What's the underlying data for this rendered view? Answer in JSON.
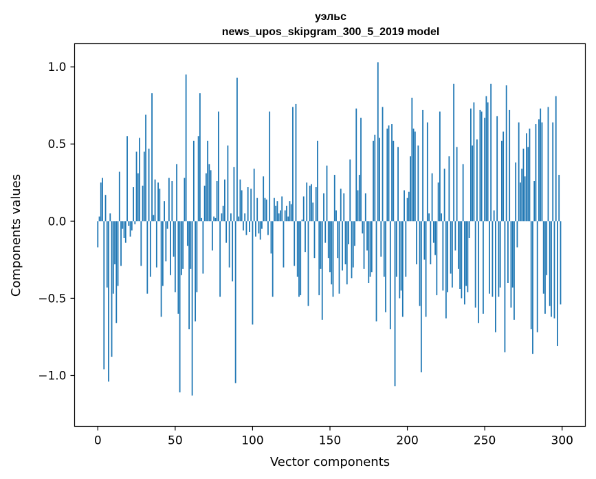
{
  "chart_data": {
    "type": "bar",
    "title": "уэльс",
    "subtitle": "news_upos_skipgram_300_5_2019 model",
    "xlabel": "Vector components",
    "ylabel": "Components values",
    "xlim": [
      -15,
      315
    ],
    "ylim": [
      -1.33,
      1.15
    ],
    "xticks": [
      0,
      50,
      100,
      150,
      200,
      250,
      300
    ],
    "xtick_labels": [
      "0",
      "50",
      "100",
      "150",
      "200",
      "250",
      "300"
    ],
    "yticks": [
      1.0,
      0.5,
      0.0,
      -0.5,
      -1.0
    ],
    "ytick_labels": [
      "1.0",
      "0.5",
      "0.0",
      "−0.5",
      "−1.0"
    ],
    "bar_color": "#1f77b4",
    "grid": false,
    "values": [
      -0.17,
      0.03,
      0.25,
      0.28,
      -0.96,
      0.17,
      -0.43,
      -1.04,
      0.05,
      -0.88,
      -0.47,
      -0.28,
      -0.66,
      -0.42,
      0.32,
      -0.29,
      -0.05,
      -0.11,
      -0.14,
      0.55,
      -0.03,
      -0.1,
      -0.06,
      0.22,
      -0.02,
      0.45,
      0.31,
      0.54,
      -0.29,
      0.23,
      0.45,
      0.69,
      -0.47,
      0.47,
      -0.36,
      0.83,
      0.04,
      0.27,
      -0.3,
      0.25,
      0.21,
      -0.62,
      -0.42,
      0.13,
      -0.26,
      -0.05,
      0.28,
      -0.35,
      0.26,
      -0.23,
      -0.46,
      0.37,
      -0.6,
      -1.11,
      -0.35,
      -0.31,
      0.28,
      0.95,
      -0.16,
      -0.7,
      -0.31,
      -1.13,
      0.52,
      -0.65,
      -0.46,
      0.55,
      0.83,
      0.02,
      -0.34,
      0.23,
      0.31,
      0.52,
      0.37,
      0.33,
      -0.19,
      0.03,
      0.02,
      0.26,
      0.71,
      -0.49,
      0.05,
      0.1,
      0.27,
      -0.14,
      0.49,
      -0.3,
      0.05,
      -0.39,
      0.35,
      -1.05,
      0.93,
      0.03,
      0.27,
      0.2,
      -0.06,
      0.05,
      -0.09,
      0.22,
      -0.07,
      0.21,
      -0.67,
      0.34,
      -0.1,
      0.15,
      -0.08,
      -0.12,
      -0.05,
      0.29,
      0.15,
      0.14,
      -0.09,
      0.71,
      -0.21,
      -0.49,
      0.15,
      0.1,
      0.13,
      0.05,
      0.07,
      0.16,
      -0.3,
      0.07,
      0.1,
      0.03,
      0.13,
      0.11,
      0.74,
      -0.29,
      0.76,
      -0.36,
      -0.49,
      -0.48,
      0.01,
      0.16,
      -0.2,
      0.25,
      -0.55,
      0.23,
      0.24,
      0.12,
      -0.24,
      0.22,
      0.52,
      -0.48,
      -0.31,
      -0.64,
      0.18,
      -0.14,
      0.36,
      -0.24,
      -0.33,
      -0.41,
      -0.49,
      0.3,
      0.07,
      -0.24,
      -0.47,
      0.21,
      -0.32,
      0.18,
      -0.28,
      -0.41,
      -0.15,
      0.4,
      -0.37,
      -0.3,
      -0.16,
      0.73,
      0.2,
      0.3,
      0.67,
      -0.08,
      -0.31,
      0.18,
      -0.19,
      -0.4,
      -0.36,
      -0.33,
      0.52,
      0.56,
      -0.65,
      1.03,
      0.54,
      -0.23,
      0.74,
      -0.36,
      -0.59,
      0.6,
      0.62,
      -0.7,
      0.63,
      0.52,
      -1.07,
      -0.36,
      0.48,
      -0.5,
      -0.45,
      -0.62,
      0.2,
      -0.36,
      0.15,
      0.19,
      0.42,
      0.8,
      0.6,
      0.58,
      -0.28,
      0.49,
      -0.55,
      -0.98,
      0.72,
      -0.25,
      -0.62,
      0.64,
      0.05,
      -0.28,
      0.31,
      -0.14,
      -0.22,
      -0.48,
      0.25,
      0.71,
      0.05,
      -0.45,
      0.34,
      -0.63,
      -0.46,
      0.42,
      -0.34,
      -0.43,
      0.89,
      -0.19,
      0.48,
      -0.31,
      -0.44,
      -0.5,
      0.37,
      -0.54,
      -0.42,
      -0.46,
      -0.11,
      0.73,
      0.49,
      0.77,
      -0.56,
      0.53,
      -0.66,
      0.72,
      0.71,
      -0.6,
      0.67,
      0.81,
      0.77,
      -0.47,
      0.89,
      -0.49,
      0.07,
      -0.72,
      0.68,
      -0.49,
      -0.43,
      0.52,
      0.58,
      -0.85,
      0.88,
      -0.4,
      0.72,
      -0.56,
      -0.43,
      -0.64,
      0.38,
      -0.17,
      0.64,
      0.25,
      0.34,
      0.47,
      0.29,
      0.57,
      0.48,
      0.6,
      -0.7,
      -0.86,
      0.26,
      0.63,
      -0.72,
      0.66,
      0.73,
      0.64,
      -0.47,
      -0.6,
      -0.35,
      0.74,
      -0.55,
      -0.62,
      0.64,
      -0.63,
      0.81,
      -0.81,
      0.3,
      -0.54
    ]
  }
}
